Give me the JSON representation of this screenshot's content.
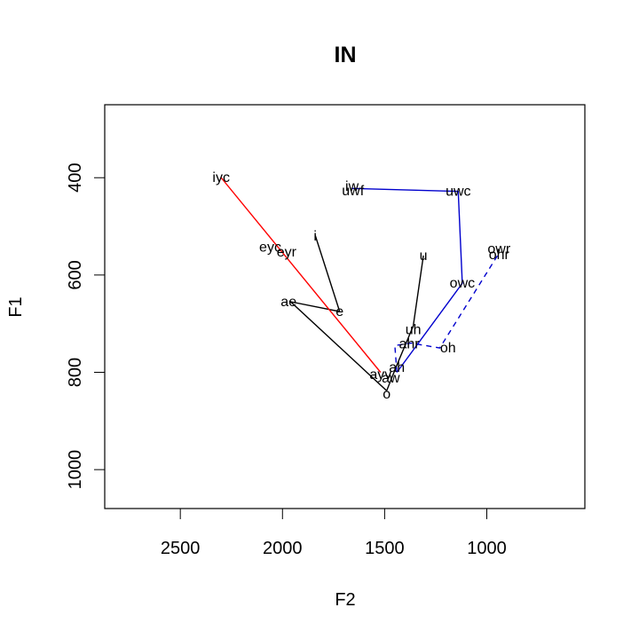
{
  "chart_data": {
    "type": "scatter",
    "title": "IN",
    "xlabel": "F2",
    "ylabel": "F1",
    "x_reversed": true,
    "y_reversed": true,
    "xlim": [
      2870,
      520
    ],
    "ylim": [
      1080,
      250
    ],
    "xticks": [
      2500,
      2000,
      1500,
      1000
    ],
    "yticks": [
      400,
      600,
      800,
      1000
    ],
    "grid": false,
    "points": [
      {
        "label": "iyc",
        "x": 2300,
        "y": 400
      },
      {
        "label": "iw",
        "x": 1660,
        "y": 418
      },
      {
        "label": "uwf",
        "x": 1655,
        "y": 427
      },
      {
        "label": "uwc",
        "x": 1140,
        "y": 428
      },
      {
        "label": "eyc",
        "x": 2060,
        "y": 543
      },
      {
        "label": "eyr",
        "x": 1980,
        "y": 553
      },
      {
        "label": "i",
        "x": 1840,
        "y": 520
      },
      {
        "label": "u",
        "x": 1310,
        "y": 560
      },
      {
        "label": "owr",
        "x": 940,
        "y": 546
      },
      {
        "label": "ohr",
        "x": 940,
        "y": 558
      },
      {
        "label": "owc",
        "x": 1120,
        "y": 617
      },
      {
        "label": "ae",
        "x": 1970,
        "y": 655
      },
      {
        "label": "e",
        "x": 1720,
        "y": 675
      },
      {
        "label": "uh",
        "x": 1360,
        "y": 712
      },
      {
        "label": "ahr",
        "x": 1380,
        "y": 742
      },
      {
        "label": "oh",
        "x": 1190,
        "y": 750
      },
      {
        "label": "ah",
        "x": 1440,
        "y": 790
      },
      {
        "label": "ayv",
        "x": 1520,
        "y": 805
      },
      {
        "label": "aw",
        "x": 1470,
        "y": 812
      },
      {
        "label": "o",
        "x": 1490,
        "y": 845
      }
    ],
    "series": [
      {
        "color": "#000000",
        "dash": false,
        "points": [
          {
            "x": 1840,
            "y": 518
          },
          {
            "x": 1720,
            "y": 675
          },
          {
            "x": 1960,
            "y": 655
          },
          {
            "x": 1490,
            "y": 838
          },
          {
            "x": 1440,
            "y": 785
          },
          {
            "x": 1360,
            "y": 705
          },
          {
            "x": 1310,
            "y": 560
          }
        ]
      },
      {
        "color": "#ff0000",
        "dash": false,
        "points": [
          {
            "x": 2300,
            "y": 400
          },
          {
            "x": 1520,
            "y": 800
          }
        ]
      },
      {
        "color": "#0000cd",
        "dash": false,
        "points": [
          {
            "x": 1660,
            "y": 422
          },
          {
            "x": 1140,
            "y": 428
          },
          {
            "x": 1120,
            "y": 617
          },
          {
            "x": 1440,
            "y": 800
          }
        ]
      },
      {
        "color": "#0000cd",
        "dash": true,
        "points": [
          {
            "x": 1440,
            "y": 800
          },
          {
            "x": 1450,
            "y": 745
          },
          {
            "x": 1370,
            "y": 740
          },
          {
            "x": 1230,
            "y": 750
          },
          {
            "x": 940,
            "y": 555
          }
        ]
      }
    ]
  }
}
